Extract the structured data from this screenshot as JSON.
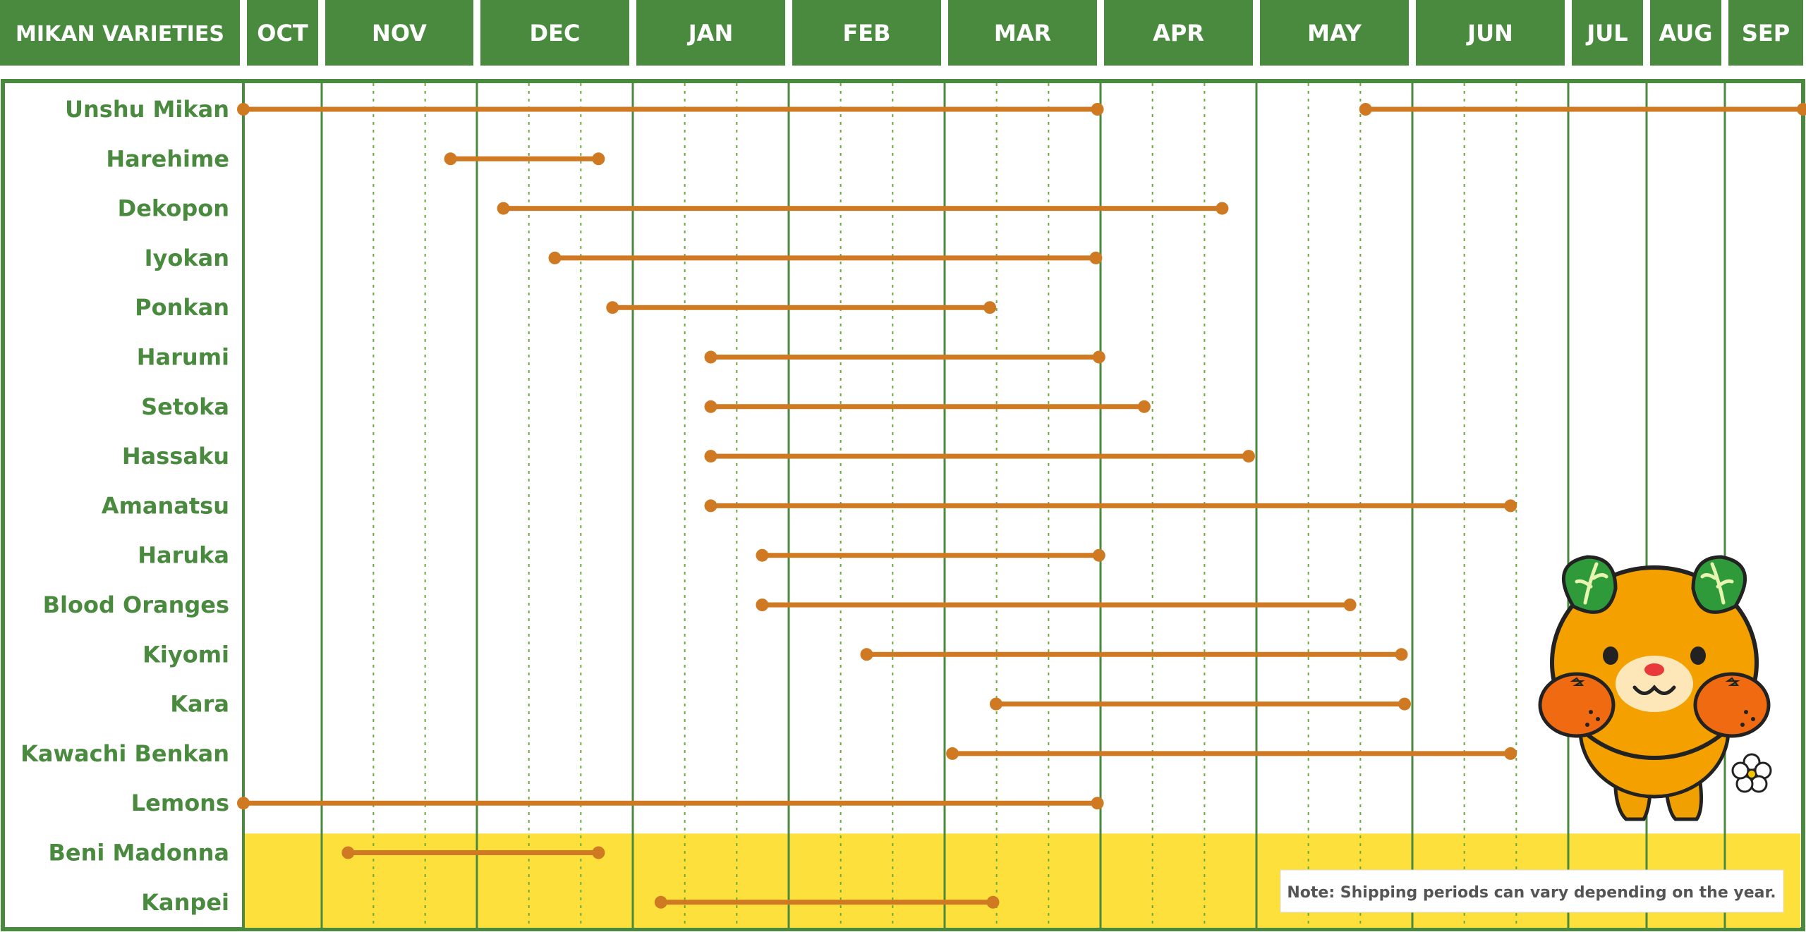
{
  "chart_data": {
    "type": "gantt",
    "title": "MIKAN VARIETIES",
    "months": [
      "OCT",
      "NOV",
      "DEC",
      "JAN",
      "FEB",
      "MAR",
      "APR",
      "MAY",
      "JUN",
      "JUL",
      "AUG",
      "SEP"
    ],
    "series": [
      {
        "name": "Unshu Mikan",
        "periods": [
          [
            0,
            5.98
          ],
          [
            7.7,
            12
          ]
        ]
      },
      {
        "name": "Harehime",
        "periods": [
          [
            1.83,
            2.78
          ]
        ]
      },
      {
        "name": "Dekopon",
        "periods": [
          [
            2.17,
            6.78
          ]
        ]
      },
      {
        "name": "Iyokan",
        "periods": [
          [
            2.5,
            5.97
          ]
        ]
      },
      {
        "name": "Ponkan",
        "periods": [
          [
            2.87,
            5.29
          ]
        ]
      },
      {
        "name": "Harumi",
        "periods": [
          [
            3.5,
            5.99
          ]
        ]
      },
      {
        "name": "Setoka",
        "periods": [
          [
            3.5,
            6.28
          ]
        ]
      },
      {
        "name": "Hassaku",
        "periods": [
          [
            3.5,
            6.95
          ]
        ]
      },
      {
        "name": "Amanatsu",
        "periods": [
          [
            3.5,
            8.63
          ]
        ]
      },
      {
        "name": "Haruka",
        "periods": [
          [
            3.83,
            5.99
          ]
        ]
      },
      {
        "name": "Blood Oranges",
        "periods": [
          [
            3.83,
            7.6
          ]
        ]
      },
      {
        "name": "Kiyomi",
        "periods": [
          [
            4.5,
            7.93
          ]
        ]
      },
      {
        "name": "Kara",
        "periods": [
          [
            5.33,
            7.95
          ]
        ]
      },
      {
        "name": "Kawachi Benkan",
        "periods": [
          [
            5.05,
            8.63
          ]
        ]
      },
      {
        "name": "Lemons",
        "periods": [
          [
            0,
            5.98
          ]
        ]
      },
      {
        "name": "Beni Madonna",
        "periods": [
          [
            1.17,
            2.78
          ]
        ],
        "highlight": true
      },
      {
        "name": "Kanpei",
        "periods": [
          [
            3.18,
            5.31
          ]
        ],
        "highlight": true
      }
    ],
    "note": "Note: Shipping periods can vary depending on the year.",
    "colors": {
      "header_bg": "#4a8a3f",
      "grid_major": "#4a8a3f",
      "grid_minor": "#6aaa3a",
      "bar": "#cf7a22",
      "highlight_bg": "#fde03c",
      "label": "#4a8a3f"
    },
    "mascot_icon": "mikan-mascot-icon"
  }
}
